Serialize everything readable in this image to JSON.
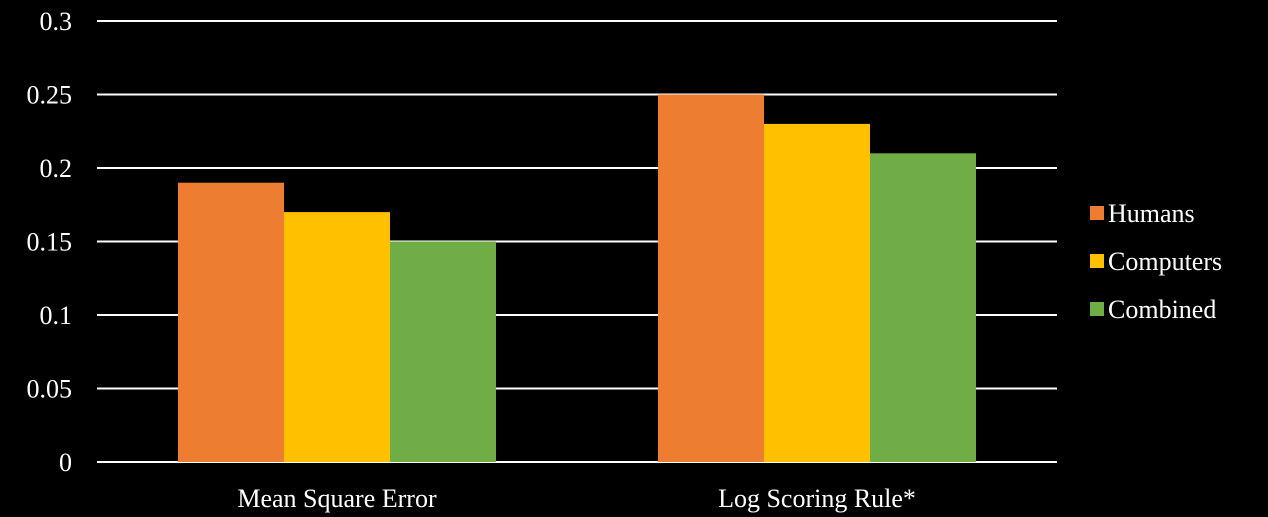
{
  "chart_data": {
    "type": "bar",
    "title": "",
    "xlabel": "",
    "ylabel": "",
    "categories": [
      "Mean Square Error",
      "Log Scoring Rule*"
    ],
    "series": [
      {
        "name": "Humans",
        "values": [
          0.19,
          0.25
        ],
        "color": "#ED7D31"
      },
      {
        "name": "Computers",
        "values": [
          0.17,
          0.23
        ],
        "color": "#FFC000"
      },
      {
        "name": "Combined",
        "values": [
          0.15,
          0.21
        ],
        "color": "#70AD47"
      }
    ],
    "ylim": [
      0,
      0.3
    ],
    "yticks": [
      "0",
      "0.05",
      "0.1",
      "0.15",
      "0.2",
      "0.25",
      "0.3"
    ],
    "grid": true,
    "legend_position": "right",
    "background": "#000000",
    "text_color": "#FFFFFF"
  }
}
